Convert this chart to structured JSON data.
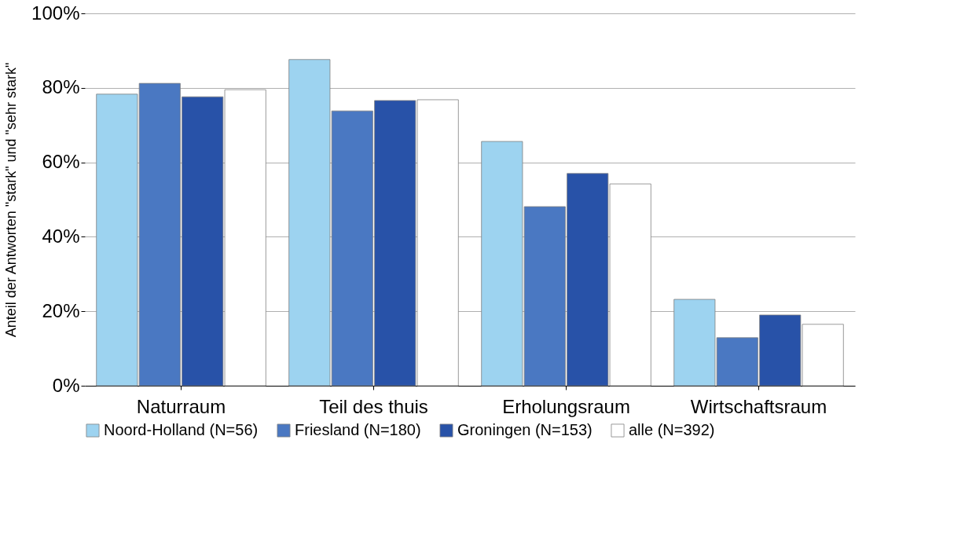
{
  "chart_data": {
    "type": "bar",
    "ylabel": "Anteil der Antworten \"stark\" und \"sehr stark\"",
    "categories": [
      "Naturraum",
      "Teil des thuis",
      "Erholungsraum",
      "Wirtschaftsraum"
    ],
    "series": [
      {
        "name": "Noord-Holland (N=56)",
        "color": "#9dd3f0",
        "values": [
          78.3,
          87.6,
          65.6,
          23.2
        ]
      },
      {
        "name": "Friesland (N=180)",
        "color": "#4a78c2",
        "values": [
          81.2,
          73.8,
          48.1,
          12.9
        ]
      },
      {
        "name": "Groningen (N=153)",
        "color": "#2852a8",
        "values": [
          77.6,
          76.6,
          57.0,
          19.0
        ]
      },
      {
        "name": "alle (N=392)",
        "color": "#ffffff",
        "values": [
          79.5,
          76.8,
          54.2,
          16.5
        ]
      }
    ],
    "ylim": [
      0,
      100
    ],
    "yticks": [
      {
        "value": 0,
        "label": "0%"
      },
      {
        "value": 20,
        "label": "20%"
      },
      {
        "value": 40,
        "label": "40%"
      },
      {
        "value": 60,
        "label": "60%"
      },
      {
        "value": 80,
        "label": "80%"
      },
      {
        "value": 100,
        "label": "100%"
      }
    ],
    "grid": "y",
    "legend": "bottom"
  }
}
